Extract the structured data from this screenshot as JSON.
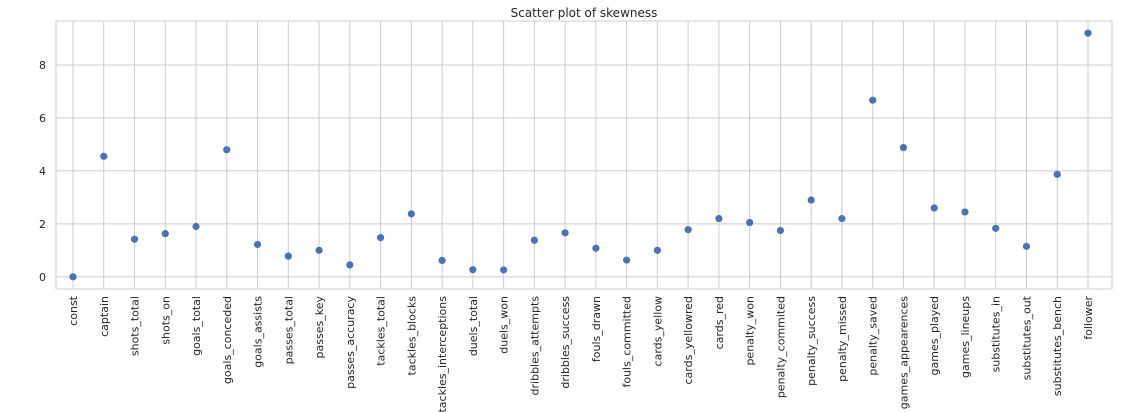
{
  "chart_data": {
    "type": "scatter",
    "title": "Scatter plot of skewness",
    "xlabel": "",
    "ylabel": "",
    "categories": [
      "const",
      "captain",
      "shots_total",
      "shots_on",
      "goals_total",
      "goals_conceded",
      "goals_assists",
      "passes_total",
      "passes_key",
      "passes_accuracy",
      "tackles_total",
      "tackles_blocks",
      "tackles_interceptions",
      "duels_total",
      "duels_won",
      "dribbles_attempts",
      "dribbles_success",
      "fouls_drawn",
      "fouls_committed",
      "cards_yellow",
      "cards_yellowred",
      "cards_red",
      "penalty_won",
      "penalty_commited",
      "penalty_success",
      "penalty_missed",
      "penalty_saved",
      "games_appearences",
      "games_played",
      "games_lineups",
      "substitutes_in",
      "substitutes_out",
      "substitutes_bench",
      "follower"
    ],
    "values": [
      0.0,
      4.55,
      1.42,
      1.63,
      1.9,
      4.8,
      1.22,
      0.78,
      1.0,
      0.45,
      1.48,
      2.38,
      0.62,
      0.27,
      0.26,
      1.38,
      1.66,
      1.08,
      0.63,
      1.0,
      1.78,
      2.2,
      2.05,
      1.75,
      2.9,
      2.2,
      6.67,
      4.88,
      2.6,
      2.45,
      1.83,
      1.15,
      3.87,
      9.2
    ],
    "yticks": [
      0,
      2,
      4,
      6,
      8
    ],
    "ylim": [
      -0.46,
      9.66
    ],
    "grid": true,
    "marker_color": "#4c72b0"
  }
}
